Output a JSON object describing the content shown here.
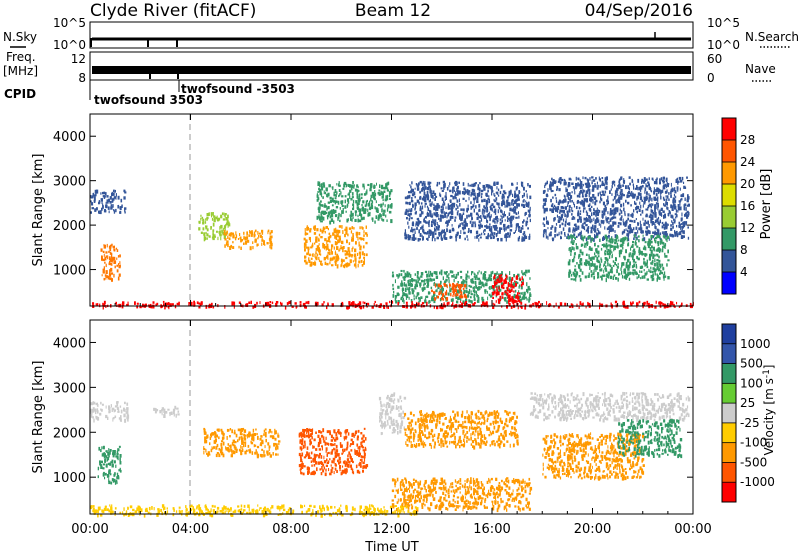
{
  "header": {
    "station": "Clyde River (fitACF)",
    "beam": "Beam 12",
    "date": "04/Sep/2016"
  },
  "noise_panel": {
    "left_label": "N.Sky",
    "left_ticks": [
      "10^5",
      "10^0"
    ],
    "right_label": "N.Search",
    "right_ticks": [
      "10^5",
      "10^0"
    ]
  },
  "freq_panel": {
    "left_label_1": "Freq.",
    "left_label_2": "[MHz]",
    "left_ticks": [
      "12",
      "8"
    ],
    "right_label": "Nave",
    "right_ticks": [
      "60",
      "0"
    ],
    "cpid_label": "CPID",
    "cpid_entries": [
      "twofsound 3503",
      "twofsound -3503"
    ]
  },
  "chart_data": [
    {
      "type": "heatmap",
      "name": "power",
      "ylabel": "Slant Range [km]",
      "xlabel": "",
      "x_ticks": [
        "00:00",
        "04:00",
        "08:00",
        "12:00",
        "16:00",
        "20:00",
        "00:00"
      ],
      "y_ticks": [
        1000,
        2000,
        3000,
        4000
      ],
      "ylim": [
        180,
        4500
      ],
      "xlim_hours": [
        0,
        24
      ],
      "colorbar": {
        "label": "Power [dB]",
        "ticks": [
          "28",
          "24",
          "20",
          "16",
          "12",
          "8",
          "4"
        ],
        "colors": [
          "#ff0000",
          "#ff5500",
          "#ff9900",
          "#dddd00",
          "#99cc33",
          "#339966",
          "#335599",
          "#0000ff"
        ]
      },
      "regions": [
        {
          "t0": 0.4,
          "t1": 1.2,
          "r0": 800,
          "r1": 1600,
          "color": "#ff7700"
        },
        {
          "t0": 0.0,
          "t1": 1.4,
          "r0": 2300,
          "r1": 2800,
          "color": "#335599"
        },
        {
          "t0": 4.3,
          "t1": 5.5,
          "r0": 1700,
          "r1": 2300,
          "color": "#99cc33"
        },
        {
          "t0": 5.3,
          "t1": 7.2,
          "r0": 1500,
          "r1": 1900,
          "color": "#ff9900"
        },
        {
          "t0": 8.5,
          "t1": 11.0,
          "r0": 1100,
          "r1": 2000,
          "color": "#ff9900"
        },
        {
          "t0": 9.0,
          "t1": 12.0,
          "r0": 2100,
          "r1": 3000,
          "color": "#339966"
        },
        {
          "t0": 12.0,
          "t1": 17.5,
          "r0": 300,
          "r1": 1000,
          "color": "#339966"
        },
        {
          "t0": 13.5,
          "t1": 15.0,
          "r0": 350,
          "r1": 700,
          "color": "#ff5500"
        },
        {
          "t0": 16.0,
          "t1": 17.2,
          "r0": 300,
          "r1": 900,
          "color": "#ff0000"
        },
        {
          "t0": 12.5,
          "t1": 17.5,
          "r0": 1700,
          "r1": 3000,
          "color": "#335599"
        },
        {
          "t0": 18.0,
          "t1": 23.8,
          "r0": 1700,
          "r1": 3100,
          "color": "#335599"
        },
        {
          "t0": 19.0,
          "t1": 23.0,
          "r0": 800,
          "r1": 1800,
          "color": "#339966"
        },
        {
          "t0": 0.0,
          "t1": 24.0,
          "r0": 180,
          "r1": 300,
          "color": "#ff0000"
        }
      ]
    },
    {
      "type": "heatmap",
      "name": "velocity",
      "ylabel": "Slant Range [km]",
      "xlabel": "Time UT",
      "x_ticks": [
        "00:00",
        "04:00",
        "08:00",
        "12:00",
        "16:00",
        "20:00",
        "00:00"
      ],
      "y_ticks": [
        1000,
        2000,
        3000,
        4000
      ],
      "ylim": [
        180,
        4500
      ],
      "xlim_hours": [
        0,
        24
      ],
      "colorbar": {
        "label": "Velocity [m s^-1]",
        "ticks": [
          "1000",
          "500",
          "100",
          "25",
          "-25",
          "-100",
          "-500",
          "-1000"
        ],
        "colors": [
          "#1f3f9f",
          "#3355aa",
          "#339966",
          "#66cc33",
          "#cccccc",
          "#ffcc00",
          "#ff9900",
          "#ff5500",
          "#ff0000"
        ]
      },
      "regions": [
        {
          "t0": 0.3,
          "t1": 1.2,
          "r0": 900,
          "r1": 1700,
          "color": "#339966"
        },
        {
          "t0": 0.0,
          "t1": 1.5,
          "r0": 2300,
          "r1": 2700,
          "color": "#cccccc"
        },
        {
          "t0": 2.5,
          "t1": 3.5,
          "r0": 2400,
          "r1": 2600,
          "color": "#cccccc"
        },
        {
          "t0": 4.5,
          "t1": 7.5,
          "r0": 1500,
          "r1": 2100,
          "color": "#ff9900"
        },
        {
          "t0": 8.3,
          "t1": 11.0,
          "r0": 1100,
          "r1": 2100,
          "color": "#ff5500"
        },
        {
          "t0": 11.5,
          "t1": 12.5,
          "r0": 2000,
          "r1": 2900,
          "color": "#cccccc"
        },
        {
          "t0": 12.0,
          "t1": 17.5,
          "r0": 300,
          "r1": 1000,
          "color": "#ff9900"
        },
        {
          "t0": 12.5,
          "t1": 17.0,
          "r0": 1700,
          "r1": 2500,
          "color": "#ff9900"
        },
        {
          "t0": 17.5,
          "t1": 23.8,
          "r0": 2300,
          "r1": 2900,
          "color": "#cccccc"
        },
        {
          "t0": 18.0,
          "t1": 22.0,
          "r0": 1000,
          "r1": 2000,
          "color": "#ff9900"
        },
        {
          "t0": 21.0,
          "t1": 23.5,
          "r0": 1500,
          "r1": 2300,
          "color": "#339966"
        },
        {
          "t0": 0.0,
          "t1": 13.0,
          "r0": 180,
          "r1": 400,
          "color": "#ffcc00"
        }
      ]
    }
  ]
}
